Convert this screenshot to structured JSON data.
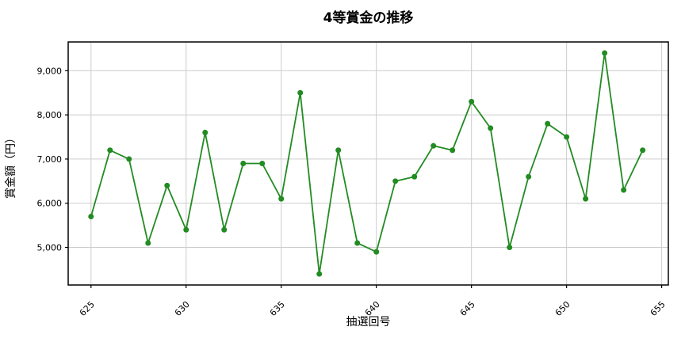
{
  "chart_data": {
    "type": "line",
    "title": "4等賞金の推移",
    "xlabel": "抽選回号",
    "ylabel": "賞金額（円）",
    "x": [
      625,
      626,
      627,
      628,
      629,
      630,
      631,
      632,
      633,
      634,
      635,
      636,
      637,
      638,
      639,
      640,
      641,
      642,
      643,
      644,
      645,
      646,
      647,
      648,
      649,
      650,
      651,
      652,
      653,
      654
    ],
    "values": [
      5700,
      7200,
      7000,
      5100,
      6400,
      5400,
      7600,
      5400,
      6900,
      6900,
      6100,
      8500,
      4400,
      7200,
      5100,
      4900,
      6500,
      6600,
      7300,
      7200,
      8300,
      7700,
      5000,
      6600,
      7800,
      7500,
      6100,
      9400,
      6300,
      7200
    ],
    "xlim": [
      623.8,
      655.35
    ],
    "ylim": [
      4150,
      9650
    ],
    "xticks": [
      625,
      630,
      635,
      640,
      645,
      650,
      655
    ],
    "xtick_labels": [
      "625",
      "630",
      "635",
      "640",
      "645",
      "650",
      "655"
    ],
    "yticks": [
      5000,
      6000,
      7000,
      8000,
      9000
    ],
    "ytick_labels": [
      "5,000",
      "6,000",
      "7,000",
      "8,000",
      "9,000"
    ],
    "grid": true,
    "legend": "none",
    "line_color": "#228B22",
    "marker": "circle",
    "marker_radius": 3.5,
    "line_width": 1.8,
    "grid_color": "#cccccc",
    "spine_color": "#000000",
    "background": "#ffffff"
  }
}
